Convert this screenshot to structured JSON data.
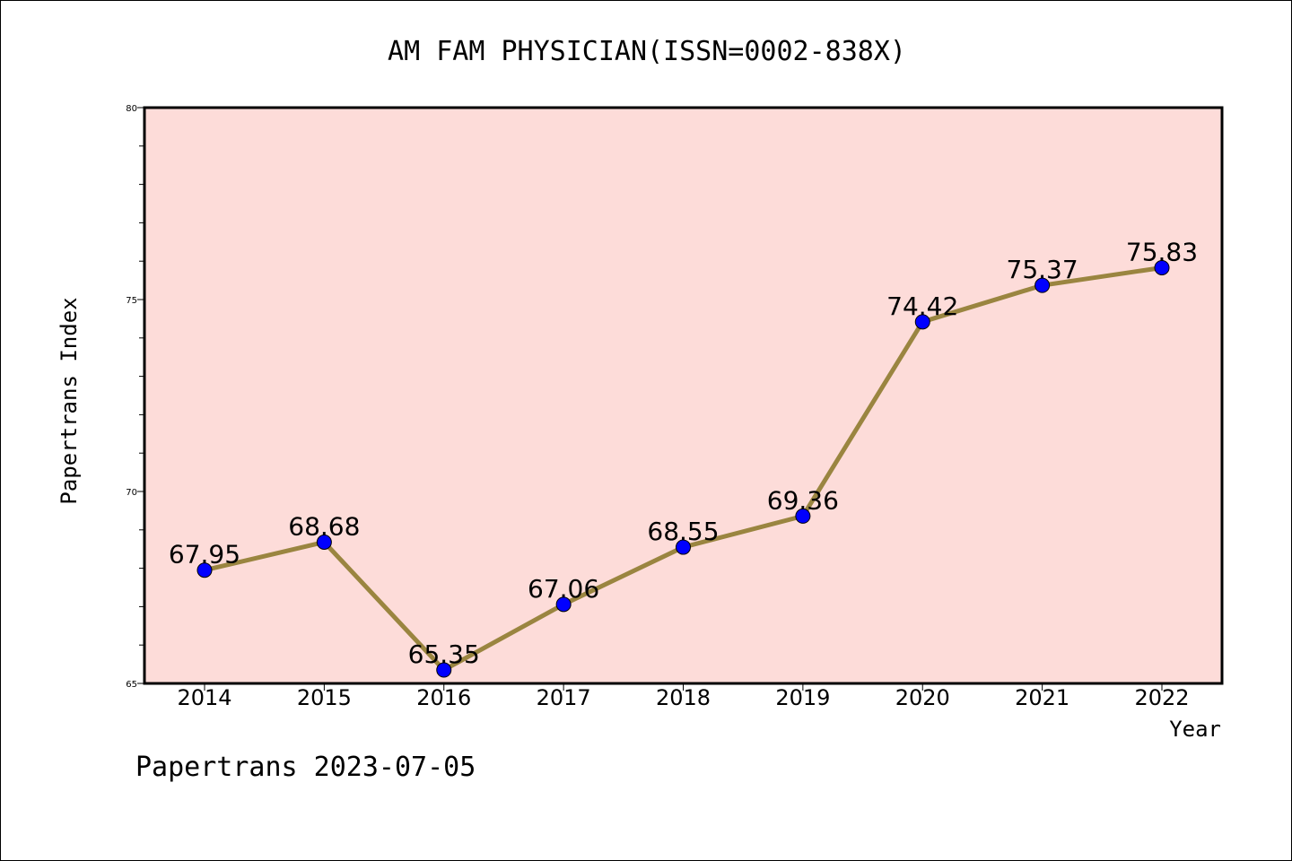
{
  "chart_data": {
    "type": "line",
    "title": "AM FAM PHYSICIAN(ISSN=0002-838X)",
    "xlabel": "Year",
    "ylabel": "Papertrans Index",
    "categories": [
      "2014",
      "2015",
      "2016",
      "2017",
      "2018",
      "2019",
      "2020",
      "2021",
      "2022"
    ],
    "series": [
      {
        "values": [
          67.95,
          68.68,
          65.35,
          67.06,
          68.55,
          69.36,
          74.42,
          75.37,
          75.83
        ],
        "labels": [
          "67.95",
          "68.68",
          "65.35",
          "67.06",
          "68.55",
          "69.36",
          "74.42",
          "75.37",
          "75.83"
        ],
        "line_color": "#9a8540",
        "marker_color": "#0000ff"
      }
    ],
    "ylim": [
      65,
      80
    ],
    "yticks": [
      65,
      70,
      75,
      80
    ],
    "ytick_labels": [
      "65",
      "70",
      "75",
      "80"
    ],
    "grid": false,
    "legend": "none",
    "plot_background": "#fddcd9"
  },
  "footer": {
    "text": "Papertrans 2023-07-05"
  }
}
